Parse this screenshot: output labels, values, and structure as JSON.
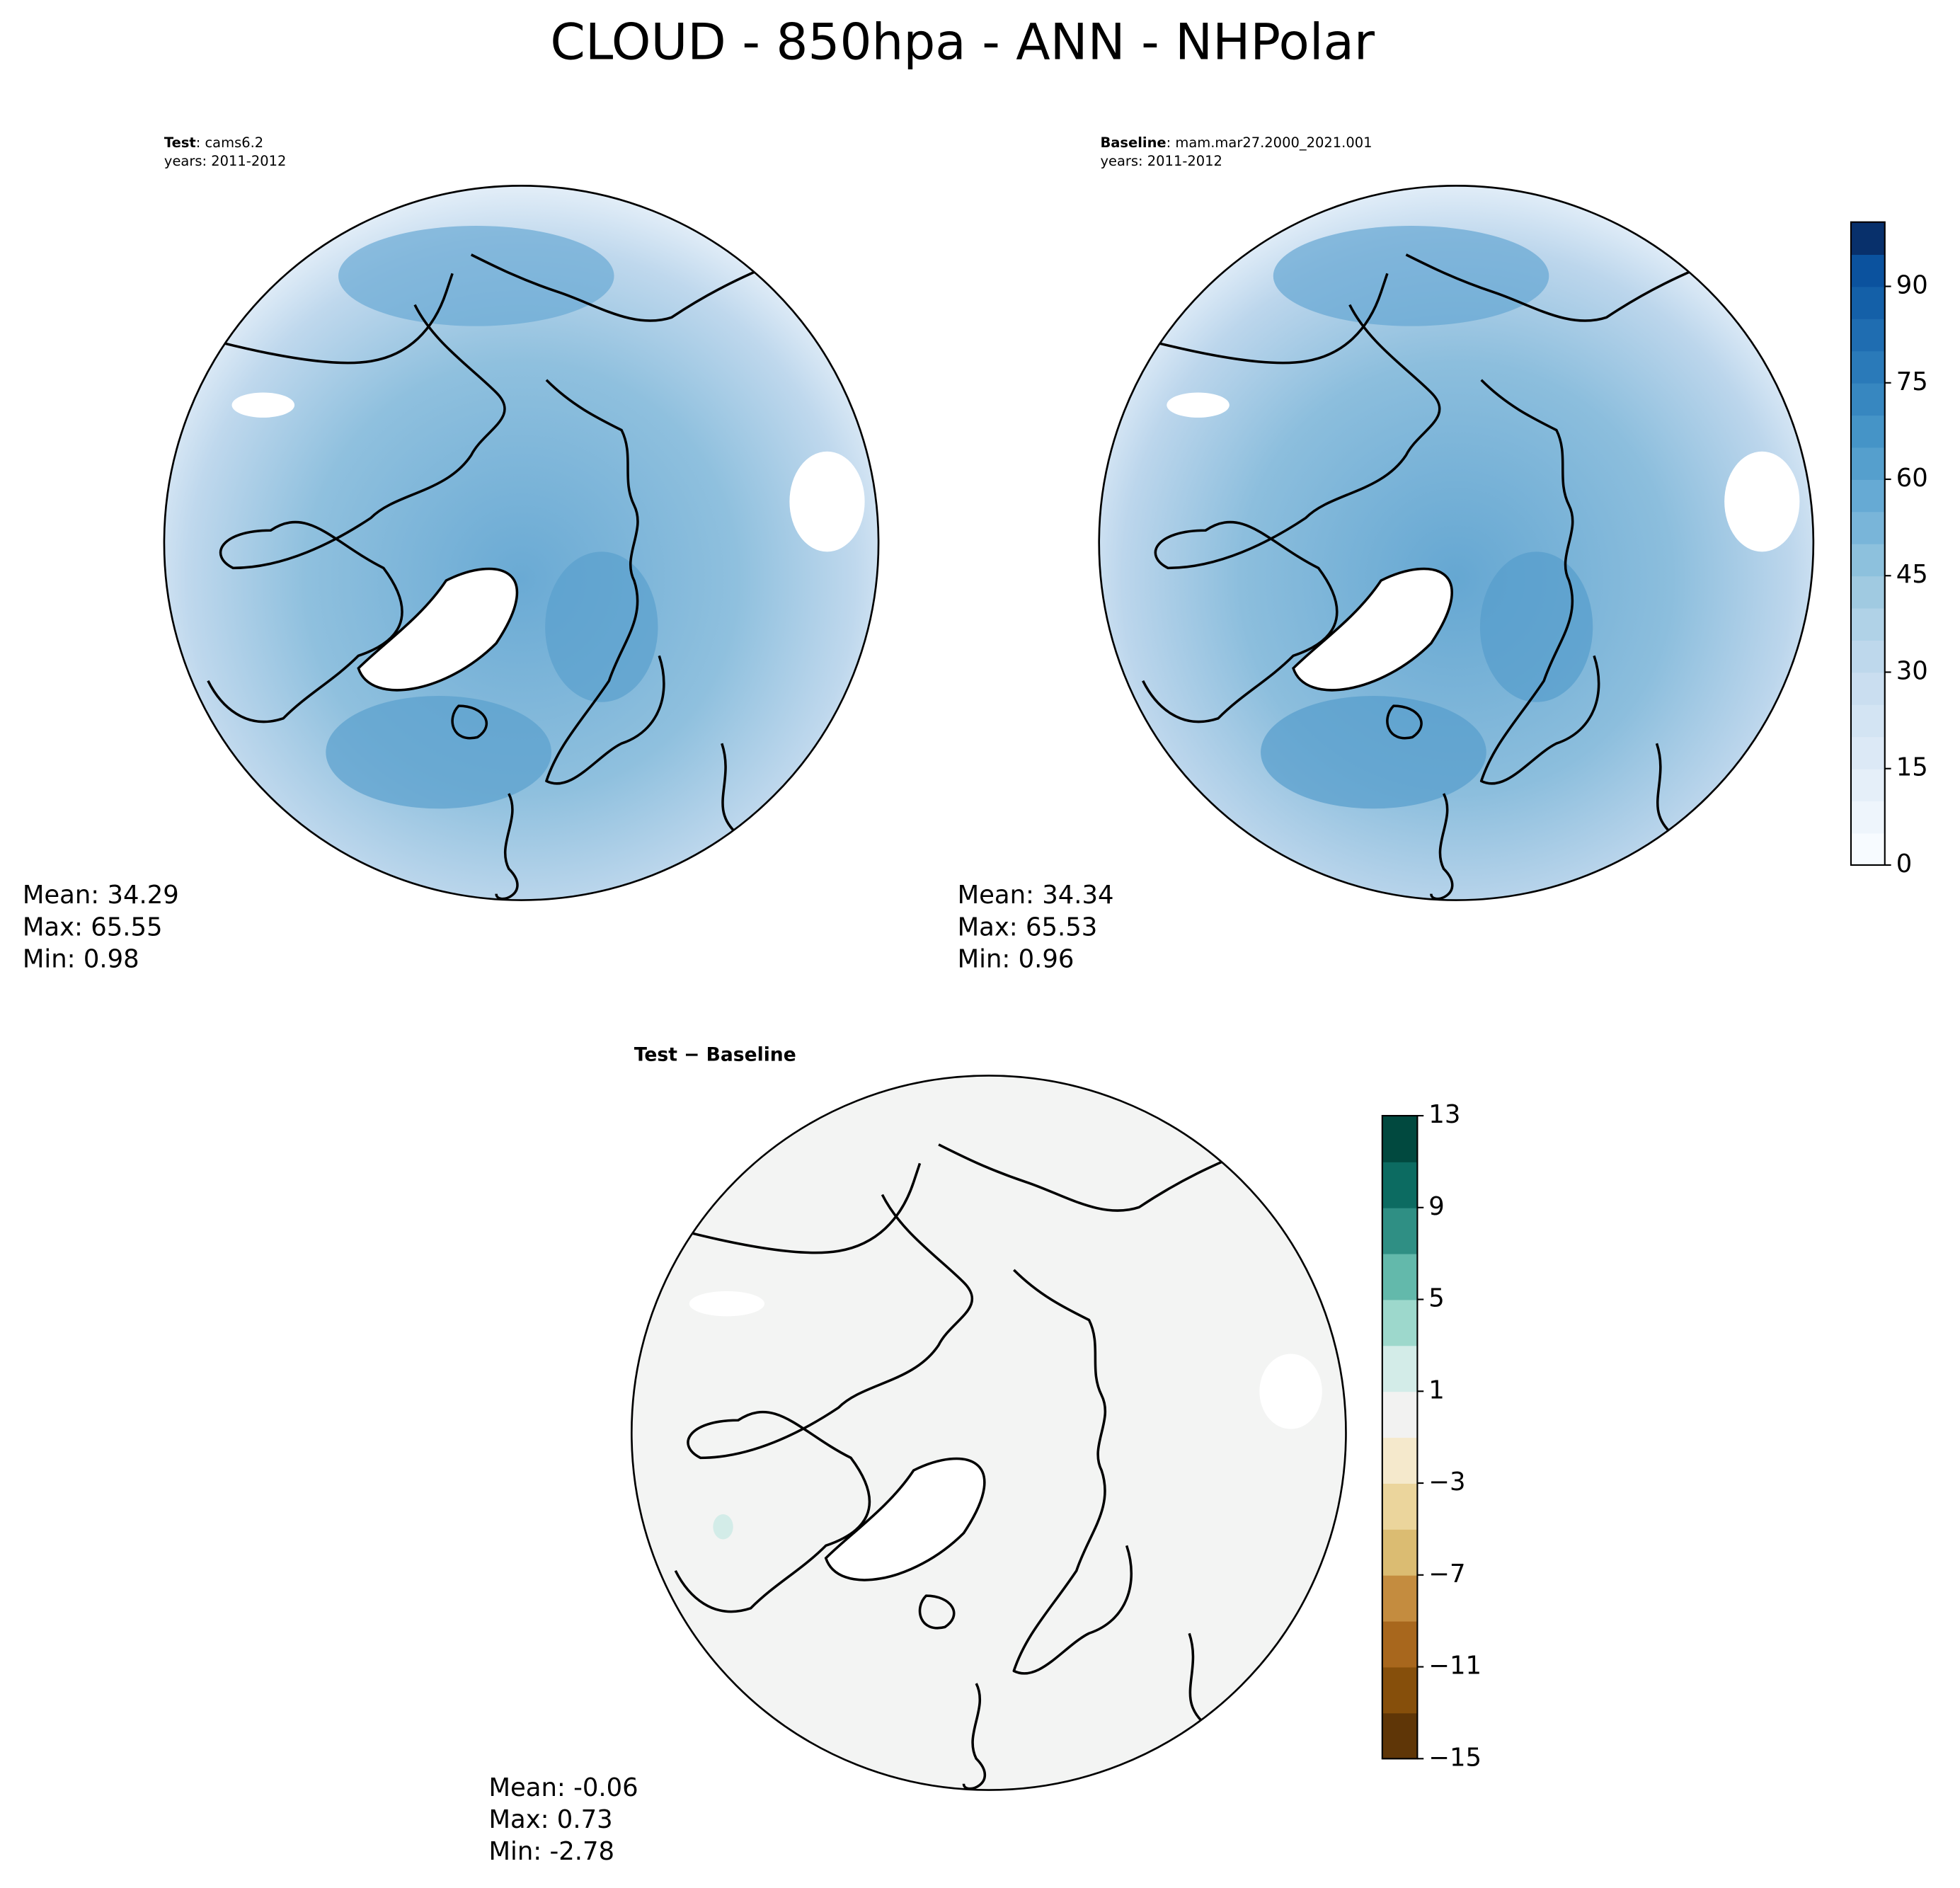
{
  "title": "CLOUD - 850hpa - ANN - NHPolar",
  "panels": [
    {
      "name": "Test",
      "detail": ": cams6.2",
      "years": "years: 2011-2012",
      "stats": [
        "Mean: 34.29",
        "Max: 65.55",
        "Min:  0.98"
      ]
    },
    {
      "name": "Baseline",
      "detail": ": mam.mar27.2000_2021.001",
      "years": "years: 2011-2012",
      "stats": [
        "Mean: 34.34",
        "Max: 65.53",
        "Min:  0.96"
      ]
    },
    {
      "name": "Test − Baseline",
      "stats": [
        "Mean: -0.06",
        "Max:  0.73",
        "Min: -2.78"
      ]
    }
  ],
  "colorbars": [
    {
      "lim": [
        0,
        100
      ],
      "ticks": [
        0,
        15,
        30,
        45,
        60,
        75,
        90
      ],
      "colors": [
        "#f7fbff",
        "#eef5fc",
        "#e5eff9",
        "#dce9f6",
        "#d3e4f3",
        "#cadef0",
        "#bed8ec",
        "#b0d2e7",
        "#a0cae1",
        "#8dc1dd",
        "#79b5d9",
        "#66aad4",
        "#559fcd",
        "#4594c7",
        "#3787c0",
        "#2a7ab9",
        "#1f6db1",
        "#1460a8",
        "#0b529e",
        "#08306b"
      ]
    },
    {
      "lim": [
        -15,
        13
      ],
      "ticks": [
        {
          "value": -15,
          "label": "−15"
        },
        {
          "value": -11,
          "label": "−11"
        },
        {
          "value": -7,
          "label": "−7"
        },
        {
          "value": -3,
          "label": "−3"
        },
        1,
        5,
        9,
        13
      ],
      "colors": [
        "#5f3607",
        "#864f0b",
        "#a8671d",
        "#c48c3f",
        "#dbbc72",
        "#ebd59c",
        "#f5e9cc",
        "#f2f2f1",
        "#d3ece8",
        "#9dd8cc",
        "#63b9ab",
        "#2f8f84",
        "#0c6b61",
        "#01493f"
      ]
    }
  ]
}
